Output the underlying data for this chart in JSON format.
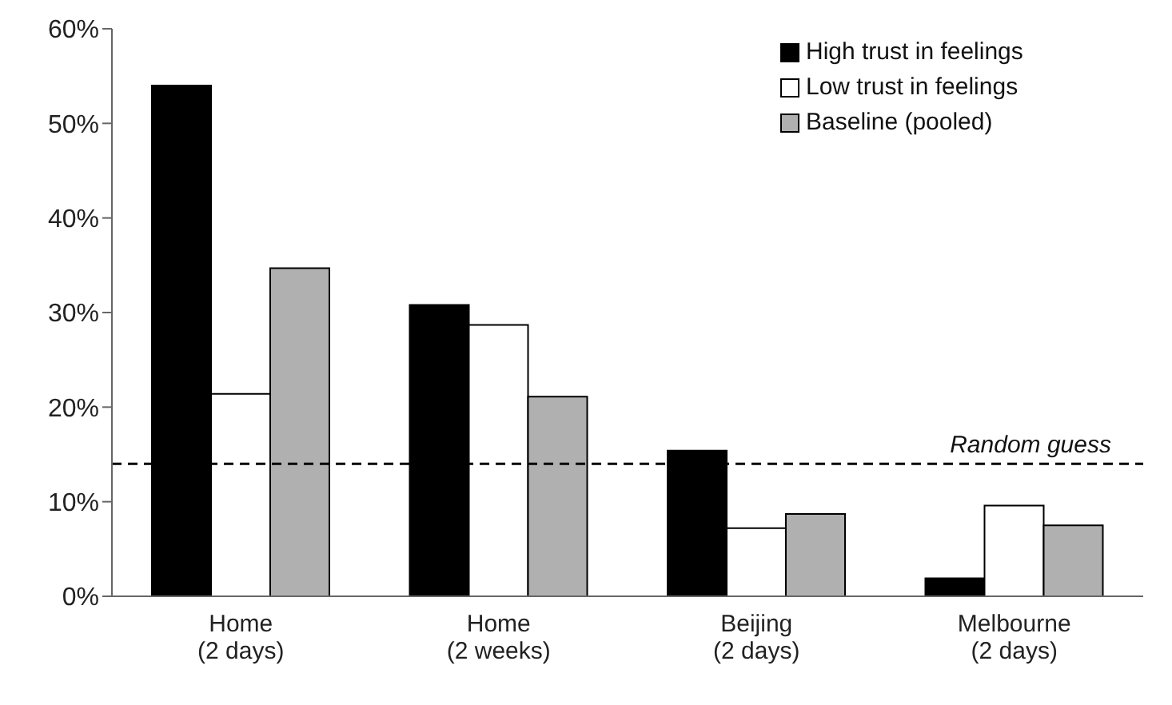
{
  "chart_data": {
    "type": "bar",
    "categories": [
      "Home\n(2 days)",
      "Home\n(2 weeks)",
      "Beijing\n(2 days)",
      "Melbourne\n(2 days)"
    ],
    "series": [
      {
        "name": "High trust in feelings",
        "color": "#000000",
        "values": [
          54,
          30.8,
          15.4,
          1.9
        ]
      },
      {
        "name": "Low trust in feelings",
        "color": "#ffffff",
        "values": [
          21.4,
          28.7,
          7.2,
          9.6
        ]
      },
      {
        "name": "Baseline (pooled)",
        "color": "#b0b0b0",
        "values": [
          34.7,
          21.1,
          8.7,
          7.5
        ]
      }
    ],
    "ylim": [
      0,
      60
    ],
    "yticks": [
      {
        "value": 0,
        "label": "0%"
      },
      {
        "value": 10,
        "label": "10%"
      },
      {
        "value": 20,
        "label": "20%"
      },
      {
        "value": 30,
        "label": "30%"
      },
      {
        "value": 40,
        "label": "40%"
      },
      {
        "value": 50,
        "label": "50%"
      },
      {
        "value": 60,
        "label": "60%"
      }
    ],
    "ref_lines": [
      {
        "axis": "y",
        "value": 14,
        "label": "Random guess",
        "color": "#000000",
        "line_style": "dashed"
      }
    ],
    "legend": "top right",
    "grid": false
  }
}
